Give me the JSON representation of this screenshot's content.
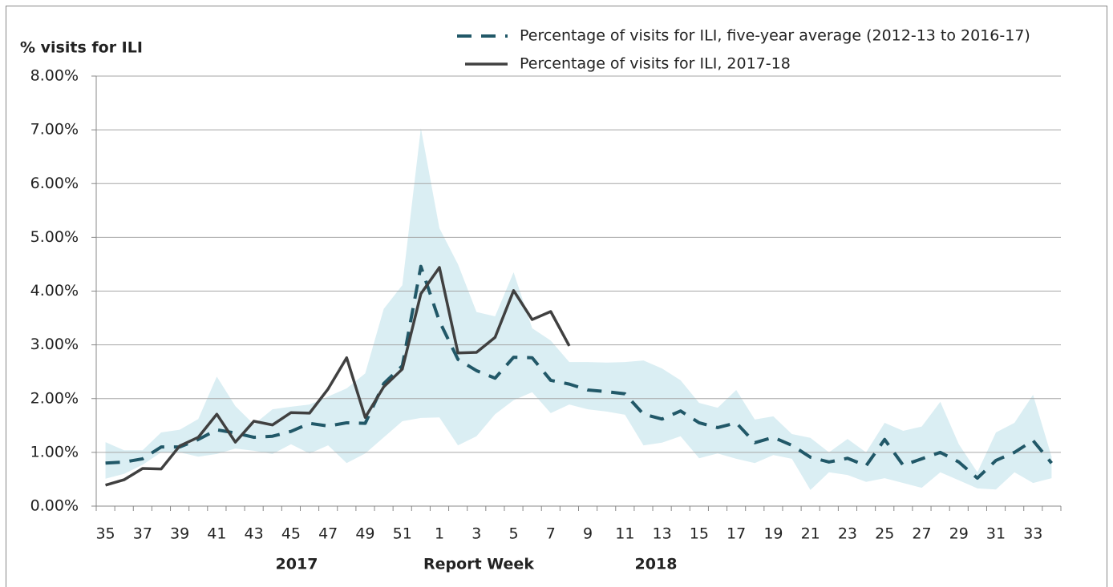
{
  "chart_data": {
    "type": "line",
    "y_label": "% visits for ILI",
    "x_label": "Report Week",
    "x_group_labels": [
      "2017",
      "2018"
    ],
    "categories": [
      "35",
      null,
      "37",
      null,
      "39",
      null,
      "41",
      null,
      "43",
      null,
      "45",
      null,
      "47",
      null,
      "49",
      null,
      "51",
      null,
      "1",
      null,
      "3",
      null,
      "5",
      null,
      "7",
      null,
      "9",
      null,
      "11",
      null,
      "13",
      null,
      "15",
      null,
      "17",
      null,
      "19",
      null,
      "21",
      null,
      "23",
      null,
      "25",
      null,
      "27",
      null,
      "29",
      null,
      "31",
      null,
      "33",
      null
    ],
    "band": {
      "color": "#daeef3",
      "upper": [
        1.19,
        1.04,
        1.04,
        1.37,
        1.42,
        1.62,
        2.41,
        1.86,
        1.52,
        1.8,
        1.85,
        1.89,
        2.04,
        2.19,
        2.47,
        3.67,
        4.11,
        7.03,
        5.17,
        4.5,
        3.61,
        3.53,
        4.35,
        3.31,
        3.08,
        2.68,
        2.68,
        2.67,
        2.68,
        2.71,
        2.56,
        2.34,
        1.92,
        1.83,
        2.16,
        1.61,
        1.67,
        1.34,
        1.27,
        1.0,
        1.25,
        1.0,
        1.55,
        1.4,
        1.48,
        1.94,
        1.15,
        0.63,
        1.37,
        1.55,
        2.07,
        0.92
      ],
      "lower": [
        0.51,
        0.6,
        0.77,
        1.0,
        1.0,
        0.92,
        0.97,
        1.07,
        1.03,
        0.97,
        1.15,
        0.98,
        1.13,
        0.8,
        0.98,
        1.28,
        1.58,
        1.64,
        1.65,
        1.13,
        1.3,
        1.71,
        1.97,
        2.12,
        1.73,
        1.89,
        1.8,
        1.76,
        1.7,
        1.13,
        1.18,
        1.3,
        0.89,
        0.98,
        0.88,
        0.8,
        0.95,
        0.88,
        0.3,
        0.63,
        0.58,
        0.45,
        0.52,
        0.43,
        0.34,
        0.63,
        0.48,
        0.33,
        0.31,
        0.63,
        0.43,
        0.52
      ]
    },
    "series": [
      {
        "name": "Percentage of visits for ILI, five-year average (2012-13 to 2016-17)",
        "color": "#215868",
        "dashed": true,
        "values": [
          0.8,
          0.82,
          0.88,
          1.1,
          1.1,
          1.24,
          1.42,
          1.36,
          1.28,
          1.3,
          1.39,
          1.54,
          1.49,
          1.55,
          1.54,
          2.28,
          2.61,
          4.46,
          3.44,
          2.73,
          2.52,
          2.38,
          2.77,
          2.76,
          2.34,
          2.27,
          2.16,
          2.13,
          2.09,
          1.71,
          1.62,
          1.77,
          1.55,
          1.46,
          1.55,
          1.18,
          1.28,
          1.13,
          0.91,
          0.82,
          0.89,
          0.75,
          1.24,
          0.76,
          0.88,
          1.0,
          0.82,
          0.52,
          0.85,
          1.0,
          1.22,
          0.8
        ]
      },
      {
        "name": "Percentage of visits for ILI, 2017-18",
        "color": "#404040",
        "dashed": false,
        "values": [
          0.39,
          0.49,
          0.7,
          0.69,
          1.12,
          1.28,
          1.71,
          1.19,
          1.58,
          1.51,
          1.74,
          1.73,
          2.18,
          2.76,
          1.65,
          2.22,
          2.55,
          3.95,
          4.44,
          2.85,
          2.86,
          3.14,
          4.01,
          3.47,
          3.62,
          2.98,
          null,
          null,
          null,
          null,
          null,
          null,
          null,
          null,
          null,
          null,
          null,
          null,
          null,
          null,
          null,
          null,
          null,
          null,
          null,
          null,
          null,
          null,
          null,
          null,
          null,
          null
        ]
      }
    ],
    "ylim": [
      0,
      8
    ],
    "yticks": [
      {
        "value": 0,
        "label": "0.00%"
      },
      {
        "value": 1,
        "label": "1.00%"
      },
      {
        "value": 2,
        "label": "2.00%"
      },
      {
        "value": 3,
        "label": "3.00%"
      },
      {
        "value": 4,
        "label": "4.00%"
      },
      {
        "value": 5,
        "label": "5.00%"
      },
      {
        "value": 6,
        "label": "6.00%"
      },
      {
        "value": 7,
        "label": "7.00%"
      },
      {
        "value": 8,
        "label": "8.00%"
      }
    ],
    "grid": true,
    "legend": "top-right"
  }
}
